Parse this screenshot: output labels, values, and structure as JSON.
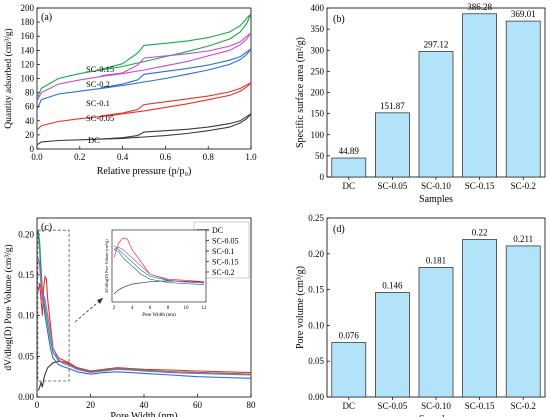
{
  "chart_data": [
    {
      "panel": "(a)",
      "type": "line",
      "xlabel": "Relative pressure (p/p₀)",
      "ylabel": "Quantity adsorbed (cm³/g)",
      "xlim": [
        0.0,
        1.0
      ],
      "ylim": [
        0,
        200
      ],
      "xticks": [
        "0.0",
        "0.2",
        "0.4",
        "0.6",
        "0.8",
        "1.0"
      ],
      "yticks": [
        "0",
        "20",
        "40",
        "60",
        "80",
        "100",
        "120",
        "140",
        "160",
        "180",
        "200"
      ],
      "series": [
        {
          "name": "DC",
          "color": "#3a3a3a",
          "adsorption": [
            [
              0.0,
              6
            ],
            [
              0.02,
              10
            ],
            [
              0.1,
              12
            ],
            [
              0.2,
              13
            ],
            [
              0.3,
              14
            ],
            [
              0.4,
              15
            ],
            [
              0.5,
              17
            ],
            [
              0.6,
              19
            ],
            [
              0.7,
              22
            ],
            [
              0.8,
              26
            ],
            [
              0.9,
              31
            ],
            [
              0.95,
              37
            ],
            [
              0.98,
              43
            ],
            [
              1.0,
              50
            ]
          ],
          "desorption": [
            [
              1.0,
              50
            ],
            [
              0.95,
              40
            ],
            [
              0.9,
              36
            ],
            [
              0.8,
              31
            ],
            [
              0.7,
              28
            ],
            [
              0.6,
              26
            ],
            [
              0.5,
              24
            ],
            [
              0.47,
              19
            ],
            [
              0.4,
              16
            ],
            [
              0.3,
              14
            ]
          ]
        },
        {
          "name": "SC-0.05",
          "color": "#e8302c",
          "adsorption": [
            [
              0.0,
              27
            ],
            [
              0.02,
              33
            ],
            [
              0.1,
              39
            ],
            [
              0.2,
              43
            ],
            [
              0.3,
              46
            ],
            [
              0.4,
              50
            ],
            [
              0.5,
              54
            ],
            [
              0.6,
              59
            ],
            [
              0.7,
              64
            ],
            [
              0.8,
              70
            ],
            [
              0.9,
              76
            ],
            [
              0.95,
              82
            ],
            [
              0.98,
              88
            ],
            [
              1.0,
              94
            ]
          ],
          "desorption": [
            [
              1.0,
              94
            ],
            [
              0.95,
              86
            ],
            [
              0.9,
              81
            ],
            [
              0.8,
              75
            ],
            [
              0.7,
              71
            ],
            [
              0.6,
              67
            ],
            [
              0.5,
              63
            ],
            [
              0.47,
              56
            ],
            [
              0.4,
              51
            ],
            [
              0.3,
              47
            ]
          ]
        },
        {
          "name": "SC-0.1",
          "color": "#2a6fd6",
          "adsorption": [
            [
              0.0,
              56
            ],
            [
              0.02,
              70
            ],
            [
              0.1,
              78
            ],
            [
              0.2,
              82
            ],
            [
              0.3,
              86
            ],
            [
              0.4,
              90
            ],
            [
              0.5,
              95
            ],
            [
              0.6,
              100
            ],
            [
              0.7,
              106
            ],
            [
              0.8,
              112
            ],
            [
              0.9,
              120
            ],
            [
              0.95,
              127
            ],
            [
              0.98,
              134
            ],
            [
              1.0,
              142
            ]
          ],
          "desorption": [
            [
              1.0,
              142
            ],
            [
              0.95,
              131
            ],
            [
              0.9,
              126
            ],
            [
              0.8,
              119
            ],
            [
              0.7,
              114
            ],
            [
              0.6,
              110
            ],
            [
              0.5,
              106
            ],
            [
              0.47,
              98
            ],
            [
              0.4,
              92
            ],
            [
              0.3,
              87
            ]
          ]
        },
        {
          "name": "SC-0.15",
          "color": "#1aa84a",
          "adsorption": [
            [
              0.0,
              72
            ],
            [
              0.02,
              86
            ],
            [
              0.1,
              100
            ],
            [
              0.2,
              107
            ],
            [
              0.3,
              112
            ],
            [
              0.4,
              117
            ],
            [
              0.5,
              124
            ],
            [
              0.6,
              131
            ],
            [
              0.7,
              138
            ],
            [
              0.8,
              146
            ],
            [
              0.9,
              156
            ],
            [
              0.95,
              166
            ],
            [
              0.98,
              178
            ],
            [
              1.0,
              192
            ]
          ],
          "desorption": [
            [
              1.0,
              192
            ],
            [
              0.95,
              175
            ],
            [
              0.9,
              166
            ],
            [
              0.8,
              158
            ],
            [
              0.7,
              153
            ],
            [
              0.6,
              150
            ],
            [
              0.5,
              147
            ],
            [
              0.47,
              136
            ],
            [
              0.4,
              121
            ],
            [
              0.3,
              113
            ]
          ]
        },
        {
          "name": "SC-0.2",
          "color": "#c04fd0",
          "adsorption": [
            [
              0.0,
              68
            ],
            [
              0.02,
              80
            ],
            [
              0.1,
              92
            ],
            [
              0.2,
              98
            ],
            [
              0.3,
              103
            ],
            [
              0.4,
              107
            ],
            [
              0.5,
              112
            ],
            [
              0.6,
              118
            ],
            [
              0.7,
              124
            ],
            [
              0.8,
              132
            ],
            [
              0.9,
              140
            ],
            [
              0.95,
              148
            ],
            [
              0.98,
              156
            ],
            [
              1.0,
              165
            ]
          ],
          "desorption": [
            [
              1.0,
              165
            ],
            [
              0.95,
              152
            ],
            [
              0.9,
              146
            ],
            [
              0.8,
              139
            ],
            [
              0.7,
              135
            ],
            [
              0.6,
              132
            ],
            [
              0.5,
              129
            ],
            [
              0.47,
              119
            ],
            [
              0.4,
              108
            ],
            [
              0.3,
              104
            ]
          ]
        }
      ],
      "annotations": [
        "SC-0.15",
        "SC-0.2",
        "SC-0.1",
        "SC-0.05",
        "DC"
      ]
    },
    {
      "panel": "(b)",
      "type": "bar",
      "xlabel": "Samples",
      "ylabel": "Specific surface area (m²/g)",
      "ylim": [
        0,
        400
      ],
      "yticks": [
        "0",
        "50",
        "100",
        "150",
        "200",
        "250",
        "300",
        "350",
        "400"
      ],
      "categories": [
        "DC",
        "SC-0.05",
        "SC-0.10",
        "SC-0.15",
        "SC-0.2"
      ],
      "values": [
        44.89,
        151.87,
        297.12,
        386.28,
        369.01
      ],
      "labels": [
        "44.89",
        "151.87",
        "297.12",
        "386.28",
        "369.01"
      ],
      "bar_color": "#b3e3f8"
    },
    {
      "panel": "(c)",
      "type": "line",
      "xlabel": "Pore Width (nm)",
      "ylabel": "dV/dlog(D) Pore Volume (cm³/g)",
      "xlim": [
        0,
        80
      ],
      "ylim": [
        0,
        0.22
      ],
      "xticks": [
        "0",
        "20",
        "40",
        "60",
        "80"
      ],
      "yticks": [
        "0.00",
        "0.05",
        "0.10",
        "0.15",
        "0.20"
      ],
      "inset": {
        "xlabel": "Pore Width (nm)",
        "ylabel": "dV/dlog(D) Pore Volume (cm³/g)",
        "xlim": [
          2,
          12
        ],
        "xticks": [
          "2",
          "4",
          "6",
          "8",
          "10",
          "12"
        ]
      },
      "series": [
        {
          "name": "DC",
          "color": "#3a3a3a",
          "values": [
            [
              0.5,
              0.008
            ],
            [
              1,
              0.012
            ],
            [
              1.5,
              0.018
            ],
            [
              2,
              0.012
            ],
            [
              2.5,
              0.022
            ],
            [
              3,
              0.028
            ],
            [
              4,
              0.036
            ],
            [
              6,
              0.042
            ],
            [
              8,
              0.044
            ],
            [
              10,
              0.043
            ],
            [
              12,
              0.041
            ],
            [
              15,
              0.036
            ],
            [
              20,
              0.032
            ],
            [
              25,
              0.033
            ],
            [
              30,
              0.035
            ],
            [
              35,
              0.034
            ],
            [
              40,
              0.032
            ],
            [
              50,
              0.031
            ],
            [
              60,
              0.03
            ],
            [
              70,
              0.029
            ],
            [
              80,
              0.028
            ]
          ]
        },
        {
          "name": "SC-0.05",
          "color": "#e8302c",
          "values": [
            [
              0.5,
              0.13
            ],
            [
              1,
              0.14
            ],
            [
              1.5,
              0.12
            ],
            [
              2,
              0.1
            ],
            [
              2.5,
              0.135
            ],
            [
              3,
              0.148
            ],
            [
              3.5,
              0.145
            ],
            [
              4,
              0.12
            ],
            [
              5,
              0.09
            ],
            [
              6,
              0.06
            ],
            [
              8,
              0.048
            ],
            [
              10,
              0.045
            ],
            [
              12,
              0.042
            ],
            [
              15,
              0.036
            ],
            [
              20,
              0.032
            ],
            [
              25,
              0.034
            ],
            [
              30,
              0.036
            ],
            [
              35,
              0.035
            ],
            [
              40,
              0.034
            ],
            [
              50,
              0.033
            ],
            [
              60,
              0.032
            ],
            [
              70,
              0.031
            ],
            [
              80,
              0.03
            ]
          ]
        },
        {
          "name": "SC-0.1",
          "color": "#2a6fd6",
          "values": [
            [
              0.5,
              0.2
            ],
            [
              1,
              0.18
            ],
            [
              1.5,
              0.14
            ],
            [
              2,
              0.12
            ],
            [
              2.5,
              0.115
            ],
            [
              3,
              0.1
            ],
            [
              4,
              0.08
            ],
            [
              5,
              0.06
            ],
            [
              6,
              0.048
            ],
            [
              8,
              0.04
            ],
            [
              10,
              0.037
            ],
            [
              12,
              0.035
            ],
            [
              15,
              0.031
            ],
            [
              20,
              0.028
            ],
            [
              25,
              0.03
            ],
            [
              30,
              0.031
            ],
            [
              35,
              0.03
            ],
            [
              40,
              0.029
            ],
            [
              50,
              0.027
            ],
            [
              60,
              0.025
            ],
            [
              70,
              0.024
            ],
            [
              80,
              0.023
            ]
          ]
        },
        {
          "name": "SC-0.15",
          "color": "#1aa84a",
          "values": [
            [
              0.5,
              0.205
            ],
            [
              1,
              0.19
            ],
            [
              1.5,
              0.16
            ],
            [
              2,
              0.13
            ],
            [
              2.5,
              0.12
            ],
            [
              3,
              0.11
            ],
            [
              4,
              0.09
            ],
            [
              5,
              0.07
            ],
            [
              6,
              0.055
            ],
            [
              8,
              0.045
            ],
            [
              10,
              0.041
            ],
            [
              12,
              0.039
            ],
            [
              15,
              0.035
            ],
            [
              20,
              0.031
            ],
            [
              25,
              0.033
            ],
            [
              30,
              0.035
            ],
            [
              35,
              0.034
            ],
            [
              40,
              0.033
            ],
            [
              50,
              0.031
            ],
            [
              60,
              0.03
            ],
            [
              70,
              0.029
            ],
            [
              80,
              0.028
            ]
          ]
        },
        {
          "name": "SC-0.2",
          "color": "#c04fd0",
          "values": [
            [
              0.5,
              0.17
            ],
            [
              1,
              0.16
            ],
            [
              1.5,
              0.14
            ],
            [
              2,
              0.12
            ],
            [
              2.5,
              0.125
            ],
            [
              3,
              0.12
            ],
            [
              4,
              0.1
            ],
            [
              5,
              0.08
            ],
            [
              6,
              0.06
            ],
            [
              8,
              0.046
            ],
            [
              10,
              0.041
            ],
            [
              12,
              0.039
            ],
            [
              15,
              0.034
            ],
            [
              20,
              0.03
            ],
            [
              25,
              0.032
            ],
            [
              30,
              0.034
            ],
            [
              35,
              0.033
            ],
            [
              40,
              0.032
            ],
            [
              50,
              0.03
            ],
            [
              60,
              0.029
            ],
            [
              70,
              0.028
            ],
            [
              80,
              0.027
            ]
          ]
        }
      ],
      "legend_position": "top-right"
    },
    {
      "panel": "(d)",
      "type": "bar",
      "xlabel": "Samples",
      "ylabel": "Pore volume (cm³/g)",
      "ylim": [
        0,
        0.25
      ],
      "yticks": [
        "0.00",
        "0.05",
        "0.10",
        "0.15",
        "0.20",
        "0.25"
      ],
      "categories": [
        "DC",
        "SC-0.05",
        "SC-0.10",
        "SC-0.15",
        "SC-0.2"
      ],
      "values": [
        0.076,
        0.146,
        0.181,
        0.22,
        0.211
      ],
      "labels": [
        "0.076",
        "0.146",
        "0.181",
        "0.22",
        "0.211"
      ],
      "bar_color": "#b3e3f8"
    }
  ]
}
